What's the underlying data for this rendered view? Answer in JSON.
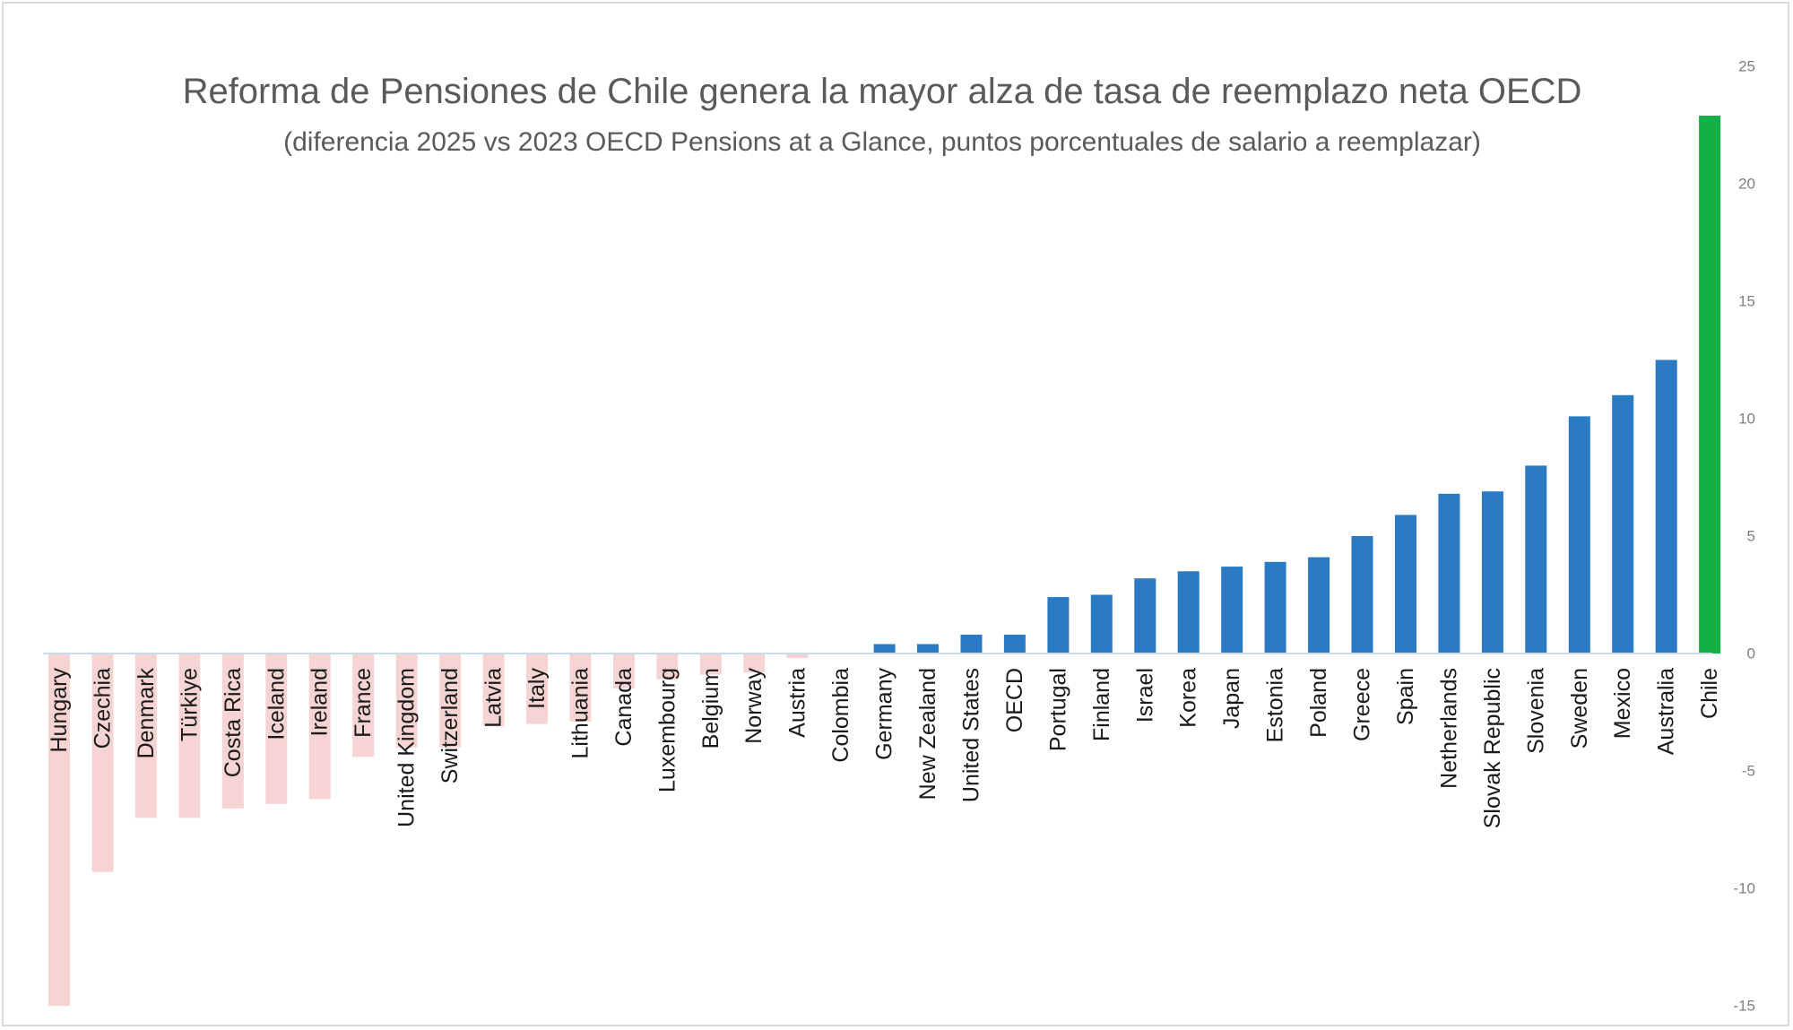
{
  "chart_data": {
    "type": "bar",
    "title": "Reforma de Pensiones de Chile genera la mayor alza de tasa de reemplazo neta OECD",
    "subtitle": "(diferencia 2025 vs 2023 OECD Pensions at a Glance, puntos porcentuales de salario a reemplazar)",
    "xlabel": "",
    "ylabel": "",
    "ylim": [
      -15,
      25
    ],
    "yticks": [
      25,
      20,
      15,
      10,
      5,
      0,
      -5,
      -10,
      -15
    ],
    "y_axis_side": "right",
    "grid": false,
    "legend": "none",
    "colors": {
      "negative": "#f7d4d4",
      "positive": "#2a7bc4",
      "highlight": "#12b145",
      "axis": "#c8dce8",
      "tick_text": "#7f7f7f"
    },
    "categories": [
      "Hungary",
      "Czechia",
      "Denmark",
      "Türkiye",
      "Costa Rica",
      "Iceland",
      "Ireland",
      "France",
      "United Kingdom",
      "Switzerland",
      "Latvia",
      "Italy",
      "Lithuania",
      "Canada",
      "Luxembourg",
      "Belgium",
      "Norway",
      "Austria",
      "Colombia",
      "Germany",
      "New Zealand",
      "United States",
      "OECD",
      "Portugal",
      "Finland",
      "Israel",
      "Korea",
      "Japan",
      "Estonia",
      "Poland",
      "Greece",
      "Spain",
      "Netherlands",
      "Slovak Republic",
      "Slovenia",
      "Sweden",
      "Mexico",
      "Australia",
      "Chile"
    ],
    "values": [
      -15.0,
      -9.3,
      -7.0,
      -7.0,
      -6.6,
      -6.4,
      -6.2,
      -4.4,
      -4.0,
      -4.0,
      -3.1,
      -3.0,
      -2.9,
      -1.5,
      -1.1,
      -0.9,
      -0.8,
      -0.2,
      0.0,
      0.4,
      0.4,
      0.8,
      0.8,
      2.4,
      2.5,
      3.2,
      3.5,
      3.7,
      3.9,
      4.1,
      5.0,
      5.9,
      6.8,
      6.9,
      8.0,
      10.1,
      11.0,
      12.5,
      22.9
    ],
    "highlight_category": "Chile"
  }
}
